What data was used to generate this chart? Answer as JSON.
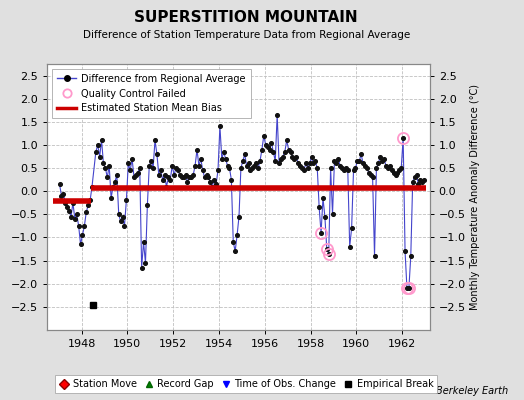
{
  "title": "SUPERSTITION MOUNTAIN",
  "subtitle": "Difference of Station Temperature Data from Regional Average",
  "ylabel_right": "Monthly Temperature Anomaly Difference (°C)",
  "credit": "Berkeley Earth",
  "xlim": [
    1946.5,
    1963.2
  ],
  "ylim": [
    -3,
    2.75
  ],
  "yticks": [
    -2.5,
    -2,
    -1.5,
    -1,
    -0.5,
    0,
    0.5,
    1,
    1.5,
    2,
    2.5
  ],
  "xticks": [
    1948,
    1950,
    1952,
    1954,
    1956,
    1958,
    1960,
    1962
  ],
  "bg_color": "#e0e0e0",
  "plot_bg_color": "#ffffff",
  "grid_color": "#c0c0c0",
  "line_color": "#4444cc",
  "dot_color": "#111111",
  "bias_color": "#cc0000",
  "qc_color": "#ff99cc",
  "segment1_start": 1946.75,
  "segment1_end": 1948.42,
  "segment1_bias": -0.22,
  "segment2_start": 1948.42,
  "segment2_end": 1963.05,
  "segment2_bias": 0.07,
  "empirical_break_x": 1948.5,
  "empirical_break_y": -2.45,
  "monthly_data": [
    [
      1947.042,
      0.15
    ],
    [
      1947.125,
      -0.1
    ],
    [
      1947.208,
      -0.05
    ],
    [
      1947.292,
      -0.25
    ],
    [
      1947.375,
      -0.35
    ],
    [
      1947.458,
      -0.42
    ],
    [
      1947.542,
      -0.55
    ],
    [
      1947.625,
      -0.25
    ],
    [
      1947.708,
      -0.6
    ],
    [
      1947.792,
      -0.5
    ],
    [
      1947.875,
      -0.75
    ],
    [
      1947.958,
      -1.15
    ],
    [
      1948.042,
      -0.95
    ],
    [
      1948.125,
      -0.75
    ],
    [
      1948.208,
      -0.45
    ],
    [
      1948.292,
      -0.3
    ],
    [
      1948.375,
      -0.2
    ],
    [
      1948.458,
      0.1
    ],
    [
      1948.625,
      0.85
    ],
    [
      1948.708,
      1.0
    ],
    [
      1948.792,
      0.75
    ],
    [
      1948.875,
      1.1
    ],
    [
      1948.958,
      0.6
    ],
    [
      1949.042,
      0.5
    ],
    [
      1949.125,
      0.3
    ],
    [
      1949.208,
      0.55
    ],
    [
      1949.292,
      -0.15
    ],
    [
      1949.375,
      0.1
    ],
    [
      1949.458,
      0.2
    ],
    [
      1949.542,
      0.35
    ],
    [
      1949.625,
      -0.5
    ],
    [
      1949.708,
      -0.65
    ],
    [
      1949.792,
      -0.55
    ],
    [
      1949.875,
      -0.75
    ],
    [
      1949.958,
      -0.2
    ],
    [
      1950.042,
      0.6
    ],
    [
      1950.125,
      0.45
    ],
    [
      1950.208,
      0.7
    ],
    [
      1950.292,
      0.3
    ],
    [
      1950.375,
      0.35
    ],
    [
      1950.458,
      0.4
    ],
    [
      1950.542,
      0.5
    ],
    [
      1950.625,
      -1.65
    ],
    [
      1950.708,
      -1.1
    ],
    [
      1950.792,
      -1.55
    ],
    [
      1950.875,
      -0.3
    ],
    [
      1950.958,
      0.55
    ],
    [
      1951.042,
      0.65
    ],
    [
      1951.125,
      0.5
    ],
    [
      1951.208,
      1.1
    ],
    [
      1951.292,
      0.8
    ],
    [
      1951.375,
      0.35
    ],
    [
      1951.458,
      0.45
    ],
    [
      1951.542,
      0.25
    ],
    [
      1951.625,
      0.35
    ],
    [
      1951.708,
      0.1
    ],
    [
      1951.792,
      0.3
    ],
    [
      1951.875,
      0.25
    ],
    [
      1951.958,
      0.55
    ],
    [
      1952.042,
      0.35
    ],
    [
      1952.125,
      0.5
    ],
    [
      1952.208,
      0.45
    ],
    [
      1952.292,
      0.35
    ],
    [
      1952.375,
      0.3
    ],
    [
      1952.458,
      0.3
    ],
    [
      1952.542,
      0.35
    ],
    [
      1952.625,
      0.2
    ],
    [
      1952.708,
      0.3
    ],
    [
      1952.792,
      0.3
    ],
    [
      1952.875,
      0.35
    ],
    [
      1952.958,
      0.55
    ],
    [
      1953.042,
      0.9
    ],
    [
      1953.125,
      0.55
    ],
    [
      1953.208,
      0.7
    ],
    [
      1953.292,
      0.45
    ],
    [
      1953.375,
      0.3
    ],
    [
      1953.458,
      0.35
    ],
    [
      1953.542,
      0.3
    ],
    [
      1953.625,
      0.2
    ],
    [
      1953.708,
      0.1
    ],
    [
      1953.792,
      0.25
    ],
    [
      1953.875,
      0.15
    ],
    [
      1953.958,
      0.45
    ],
    [
      1954.042,
      1.4
    ],
    [
      1954.125,
      0.7
    ],
    [
      1954.208,
      0.85
    ],
    [
      1954.292,
      0.7
    ],
    [
      1954.375,
      0.55
    ],
    [
      1954.458,
      0.5
    ],
    [
      1954.542,
      0.25
    ],
    [
      1954.625,
      -1.1
    ],
    [
      1954.708,
      -1.3
    ],
    [
      1954.792,
      -0.95
    ],
    [
      1954.875,
      -0.55
    ],
    [
      1954.958,
      0.5
    ],
    [
      1955.042,
      0.65
    ],
    [
      1955.125,
      0.8
    ],
    [
      1955.208,
      0.55
    ],
    [
      1955.292,
      0.6
    ],
    [
      1955.375,
      0.45
    ],
    [
      1955.458,
      0.5
    ],
    [
      1955.542,
      0.55
    ],
    [
      1955.625,
      0.6
    ],
    [
      1955.708,
      0.5
    ],
    [
      1955.792,
      0.65
    ],
    [
      1955.875,
      0.9
    ],
    [
      1955.958,
      1.2
    ],
    [
      1956.042,
      1.0
    ],
    [
      1956.125,
      0.95
    ],
    [
      1956.208,
      0.9
    ],
    [
      1956.292,
      1.05
    ],
    [
      1956.375,
      0.85
    ],
    [
      1956.458,
      0.65
    ],
    [
      1956.542,
      1.65
    ],
    [
      1956.625,
      0.6
    ],
    [
      1956.708,
      0.7
    ],
    [
      1956.792,
      0.75
    ],
    [
      1956.875,
      0.85
    ],
    [
      1956.958,
      1.1
    ],
    [
      1957.042,
      0.9
    ],
    [
      1957.125,
      0.85
    ],
    [
      1957.208,
      0.75
    ],
    [
      1957.292,
      0.7
    ],
    [
      1957.375,
      0.75
    ],
    [
      1957.458,
      0.6
    ],
    [
      1957.542,
      0.55
    ],
    [
      1957.625,
      0.5
    ],
    [
      1957.708,
      0.45
    ],
    [
      1957.792,
      0.6
    ],
    [
      1957.875,
      0.5
    ],
    [
      1957.958,
      0.6
    ],
    [
      1958.042,
      0.75
    ],
    [
      1958.125,
      0.6
    ],
    [
      1958.208,
      0.65
    ],
    [
      1958.292,
      0.5
    ],
    [
      1958.375,
      -0.35
    ],
    [
      1958.458,
      -0.9
    ],
    [
      1958.542,
      -0.15
    ],
    [
      1958.625,
      -0.55
    ],
    [
      1958.708,
      -1.25
    ],
    [
      1958.792,
      -1.35
    ],
    [
      1958.875,
      0.5
    ],
    [
      1958.958,
      -0.5
    ],
    [
      1959.042,
      0.65
    ],
    [
      1959.125,
      0.6
    ],
    [
      1959.208,
      0.7
    ],
    [
      1959.292,
      0.55
    ],
    [
      1959.375,
      0.5
    ],
    [
      1959.458,
      0.45
    ],
    [
      1959.542,
      0.5
    ],
    [
      1959.625,
      0.45
    ],
    [
      1959.708,
      -1.2
    ],
    [
      1959.792,
      -0.8
    ],
    [
      1959.875,
      0.45
    ],
    [
      1959.958,
      0.5
    ],
    [
      1960.042,
      0.65
    ],
    [
      1960.125,
      0.65
    ],
    [
      1960.208,
      0.8
    ],
    [
      1960.292,
      0.6
    ],
    [
      1960.375,
      0.55
    ],
    [
      1960.458,
      0.5
    ],
    [
      1960.542,
      0.4
    ],
    [
      1960.625,
      0.35
    ],
    [
      1960.708,
      0.3
    ],
    [
      1960.792,
      -1.4
    ],
    [
      1960.875,
      0.5
    ],
    [
      1960.958,
      0.6
    ],
    [
      1961.042,
      0.75
    ],
    [
      1961.125,
      0.65
    ],
    [
      1961.208,
      0.7
    ],
    [
      1961.292,
      0.55
    ],
    [
      1961.375,
      0.5
    ],
    [
      1961.458,
      0.55
    ],
    [
      1961.542,
      0.45
    ],
    [
      1961.625,
      0.4
    ],
    [
      1961.708,
      0.35
    ],
    [
      1961.792,
      0.4
    ],
    [
      1961.875,
      0.45
    ],
    [
      1961.958,
      0.5
    ],
    [
      1962.042,
      1.15
    ],
    [
      1962.125,
      -1.3
    ],
    [
      1962.208,
      -2.1
    ],
    [
      1962.292,
      -2.1
    ],
    [
      1962.375,
      -1.4
    ],
    [
      1962.458,
      0.2
    ],
    [
      1962.542,
      0.3
    ],
    [
      1962.625,
      0.35
    ],
    [
      1962.708,
      0.15
    ],
    [
      1962.792,
      0.25
    ],
    [
      1962.875,
      0.2
    ],
    [
      1962.958,
      0.25
    ]
  ],
  "qc_failed_points": [
    [
      1958.458,
      -0.9
    ],
    [
      1958.708,
      -1.25
    ],
    [
      1958.792,
      -1.35
    ],
    [
      1962.208,
      -2.1
    ],
    [
      1962.292,
      -2.1
    ],
    [
      1962.042,
      1.15
    ]
  ]
}
